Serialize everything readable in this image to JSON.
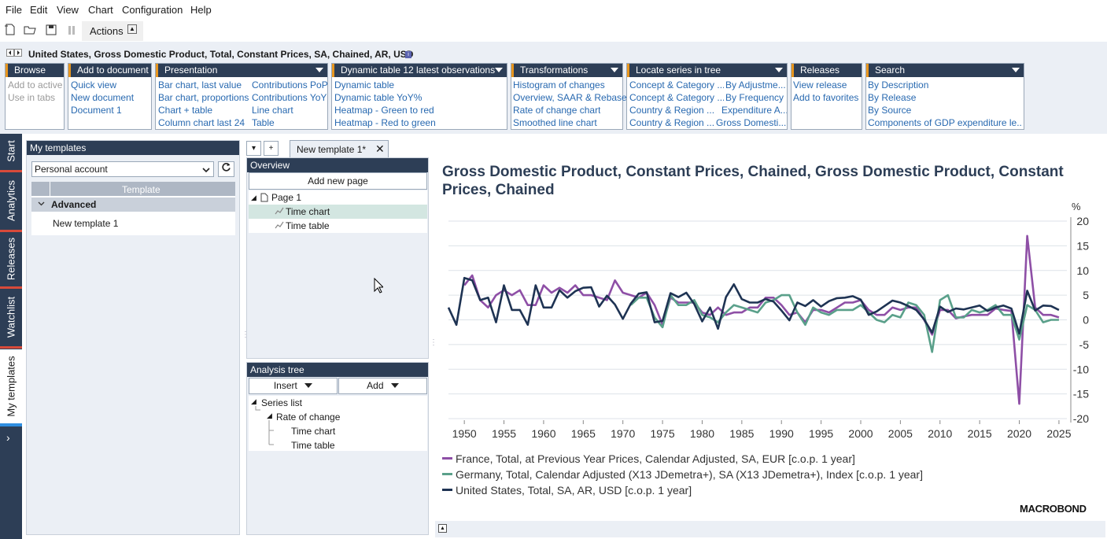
{
  "menu": [
    "File",
    "Edit",
    "View",
    "Chart",
    "Configuration",
    "Help"
  ],
  "toolbar": {
    "actions_label": "Actions",
    "caret": "▲"
  },
  "series_title": "United States, Gross Domestic Product, Total, Constant Prices, SA, Chained, AR, USD",
  "groups": {
    "browse": {
      "title": "Browse",
      "items": [
        "Add to active",
        "Use in tabs"
      ]
    },
    "add_to_document": {
      "title": "Add to document",
      "items": [
        "Quick view",
        "New document",
        "Document 1"
      ]
    },
    "presentation": {
      "title": "Presentation",
      "col1": [
        "Bar chart, last value",
        "Bar chart, proportions",
        "Chart + table",
        "Column chart last 24"
      ],
      "col2": [
        "Contributions PoP",
        "Contributions YoY",
        "Line chart",
        "Table"
      ]
    },
    "dynamic_table": {
      "title": "Dynamic table 12 latest observations",
      "items": [
        "Dynamic table",
        "Dynamic table YoY%",
        "Heatmap - Green to red",
        "Heatmap - Red to green"
      ]
    },
    "transformations": {
      "title": "Transformations",
      "items": [
        "Histogram of changes",
        "Overview, SAAR & Rebase",
        "Rate of change chart",
        "Smoothed line chart"
      ]
    },
    "locate": {
      "title": "Locate series in tree",
      "col1": [
        "Concept & Category ...",
        "Concept & Category ...",
        "Country & Region ...",
        "Country & Region ..."
      ],
      "col2": [
        "By Adjustme...",
        "By Frequency",
        "Expenditure A...",
        "Gross Domesti..."
      ]
    },
    "releases": {
      "title": "Releases",
      "items": [
        "View release",
        "Add to favorites"
      ]
    },
    "search": {
      "title": "Search",
      "items": [
        "By Description",
        "By Release",
        "By Source",
        "Components of GDP expenditure le..."
      ]
    }
  },
  "sidebar": {
    "tabs": [
      "Start",
      "Analytics",
      "Releases",
      "Watchlist",
      "My templates"
    ],
    "more": "›"
  },
  "templates_panel": {
    "title": "My templates",
    "account": "Personal account",
    "column_header": "Template",
    "group": "Advanced",
    "item": "New template 1"
  },
  "mid_tabs": {
    "dropdown": "▾",
    "add": "+",
    "tab_label": "New template 1*",
    "close": "✕"
  },
  "overview": {
    "title": "Overview",
    "add_page": "Add new page",
    "page": "Page 1",
    "items": [
      "Time chart",
      "Time table"
    ]
  },
  "analysis_tree": {
    "title": "Analysis tree",
    "insert": "Insert",
    "add": "Add",
    "rows": [
      "Series list",
      "Rate of change",
      "Time chart",
      "Time table"
    ]
  },
  "chart": {
    "title": "Gross Domestic Product, Constant Prices, Chained, Gross Domestic Product, Constant Prices, Chained",
    "logo": "MACROBOND",
    "colors": {
      "france": "#8e4fa6",
      "germany": "#5aa08a",
      "us": "#1e3353"
    }
  },
  "chart_data": {
    "type": "line",
    "ylabel": "%",
    "ylim": [
      -20,
      20
    ],
    "yticks": [
      20,
      15,
      10,
      5,
      0,
      -5,
      -10,
      -15,
      -20
    ],
    "xlim": [
      1948,
      2026
    ],
    "xticks": [
      1950,
      1955,
      1960,
      1965,
      1970,
      1975,
      1980,
      1985,
      1990,
      1995,
      2000,
      2005,
      2010,
      2015,
      2020,
      2025
    ],
    "legend_position": "bottom",
    "series": [
      {
        "name": "France, Total, at Previous Year Prices, Calendar Adjusted, SA, EUR [c.o.p. 1 year]",
        "color": "#8e4fa6",
        "points": [
          [
            1950,
            7
          ],
          [
            1951,
            9
          ],
          [
            1952,
            4
          ],
          [
            1953,
            2.5
          ],
          [
            1954,
            5
          ],
          [
            1955,
            6
          ],
          [
            1956,
            5
          ],
          [
            1957,
            6
          ],
          [
            1958,
            3
          ],
          [
            1959,
            3
          ],
          [
            1960,
            7
          ],
          [
            1961,
            5.5
          ],
          [
            1962,
            6.5
          ],
          [
            1963,
            5.5
          ],
          [
            1964,
            7
          ],
          [
            1965,
            5
          ],
          [
            1966,
            5
          ],
          [
            1967,
            4.5
          ],
          [
            1968,
            4
          ],
          [
            1969,
            8
          ],
          [
            1970,
            5.5
          ],
          [
            1971,
            5
          ],
          [
            1972,
            4.5
          ],
          [
            1973,
            5.5
          ],
          [
            1974,
            3
          ],
          [
            1975,
            -1
          ],
          [
            1976,
            4.5
          ],
          [
            1977,
            3.5
          ],
          [
            1978,
            3.5
          ],
          [
            1979,
            3.5
          ],
          [
            1980,
            1.5
          ],
          [
            1981,
            1
          ],
          [
            1982,
            2.5
          ],
          [
            1983,
            1
          ],
          [
            1984,
            1.5
          ],
          [
            1985,
            1.5
          ],
          [
            1986,
            2.5
          ],
          [
            1987,
            2.5
          ],
          [
            1988,
            4.5
          ],
          [
            1989,
            4.5
          ],
          [
            1990,
            3
          ],
          [
            1991,
            1
          ],
          [
            1992,
            1.5
          ],
          [
            1993,
            -0.5
          ],
          [
            1994,
            2
          ],
          [
            1995,
            2
          ],
          [
            1996,
            1.5
          ],
          [
            1997,
            2.5
          ],
          [
            1998,
            3.5
          ],
          [
            1999,
            3.5
          ],
          [
            2000,
            4
          ],
          [
            2001,
            2
          ],
          [
            2002,
            1
          ],
          [
            2003,
            1
          ],
          [
            2004,
            2.5
          ],
          [
            2005,
            2
          ],
          [
            2006,
            2.5
          ],
          [
            2007,
            2.5
          ],
          [
            2008,
            0
          ],
          [
            2009,
            -3
          ],
          [
            2010,
            2
          ],
          [
            2011,
            2
          ],
          [
            2012,
            0.3
          ],
          [
            2013,
            0.7
          ],
          [
            2014,
            1
          ],
          [
            2015,
            1
          ],
          [
            2016,
            1
          ],
          [
            2017,
            2.3
          ],
          [
            2018,
            2
          ],
          [
            2019,
            1.8
          ],
          [
            2020,
            -17
          ],
          [
            2021,
            17
          ],
          [
            2022,
            2.5
          ],
          [
            2023,
            1
          ],
          [
            2024,
            1
          ],
          [
            2025,
            0.5
          ]
        ]
      },
      {
        "name": "Germany, Total, Calendar Adjusted (X13 JDemetra+), SA (X13 JDemetra+), Index [c.o.p. 1 year]",
        "color": "#5aa08a",
        "points": [
          [
            1971,
            3
          ],
          [
            1972,
            4.5
          ],
          [
            1973,
            4.5
          ],
          [
            1974,
            0.5
          ],
          [
            1975,
            -1.5
          ],
          [
            1976,
            5
          ],
          [
            1977,
            3
          ],
          [
            1978,
            3
          ],
          [
            1979,
            4
          ],
          [
            1980,
            1
          ],
          [
            1981,
            0.5
          ],
          [
            1982,
            -0.5
          ],
          [
            1983,
            1.5
          ],
          [
            1984,
            3
          ],
          [
            1985,
            2.5
          ],
          [
            1986,
            2
          ],
          [
            1987,
            1.5
          ],
          [
            1988,
            3.5
          ],
          [
            1989,
            4
          ],
          [
            1990,
            5
          ],
          [
            1991,
            5
          ],
          [
            1992,
            1.5
          ],
          [
            1993,
            -1
          ],
          [
            1994,
            2.5
          ],
          [
            1995,
            1.5
          ],
          [
            1996,
            1
          ],
          [
            1997,
            2
          ],
          [
            1998,
            2
          ],
          [
            1999,
            2
          ],
          [
            2000,
            3
          ],
          [
            2001,
            1.5
          ],
          [
            2002,
            0
          ],
          [
            2003,
            -0.5
          ],
          [
            2004,
            1
          ],
          [
            2005,
            0.5
          ],
          [
            2006,
            3.5
          ],
          [
            2007,
            3
          ],
          [
            2008,
            1
          ],
          [
            2009,
            -6.5
          ],
          [
            2010,
            4
          ],
          [
            2011,
            5
          ],
          [
            2012,
            0.5
          ],
          [
            2013,
            0.5
          ],
          [
            2014,
            2
          ],
          [
            2015,
            1.5
          ],
          [
            2016,
            2
          ],
          [
            2017,
            3
          ],
          [
            2018,
            1
          ],
          [
            2019,
            1
          ],
          [
            2020,
            -4
          ],
          [
            2021,
            3
          ],
          [
            2022,
            2
          ],
          [
            2023,
            -0.5
          ],
          [
            2024,
            0
          ],
          [
            2025,
            0
          ]
        ]
      },
      {
        "name": "United States, Total, SA, AR, USD [c.o.p. 1 year]",
        "color": "#1e3353",
        "points": [
          [
            1948,
            2.5
          ],
          [
            1949,
            -1
          ],
          [
            1950,
            8.5
          ],
          [
            1951,
            8
          ],
          [
            1952,
            4
          ],
          [
            1953,
            4.5
          ],
          [
            1954,
            -0.5
          ],
          [
            1955,
            7
          ],
          [
            1956,
            2
          ],
          [
            1957,
            2
          ],
          [
            1958,
            -1
          ],
          [
            1959,
            7
          ],
          [
            1960,
            2.5
          ],
          [
            1961,
            2.5
          ],
          [
            1962,
            6
          ],
          [
            1963,
            4.5
          ],
          [
            1964,
            5.8
          ],
          [
            1965,
            6.5
          ],
          [
            1966,
            6.6
          ],
          [
            1967,
            2.7
          ],
          [
            1968,
            4.9
          ],
          [
            1969,
            3.1
          ],
          [
            1970,
            0.2
          ],
          [
            1971,
            3.3
          ],
          [
            1972,
            5.3
          ],
          [
            1973,
            5.6
          ],
          [
            1974,
            -0.5
          ],
          [
            1975,
            -0.2
          ],
          [
            1976,
            5.4
          ],
          [
            1977,
            4.6
          ],
          [
            1978,
            5.5
          ],
          [
            1979,
            3.2
          ],
          [
            1980,
            -0.3
          ],
          [
            1981,
            2.5
          ],
          [
            1982,
            -1.8
          ],
          [
            1983,
            4.6
          ],
          [
            1984,
            7.2
          ],
          [
            1985,
            4.2
          ],
          [
            1986,
            3.5
          ],
          [
            1987,
            3.5
          ],
          [
            1988,
            4.2
          ],
          [
            1989,
            3.7
          ],
          [
            1990,
            1.9
          ],
          [
            1991,
            -0.1
          ],
          [
            1992,
            3.5
          ],
          [
            1993,
            2.8
          ],
          [
            1994,
            4
          ],
          [
            1995,
            2.7
          ],
          [
            1996,
            3.8
          ],
          [
            1997,
            4.4
          ],
          [
            1998,
            4.5
          ],
          [
            1999,
            4.8
          ],
          [
            2000,
            4.1
          ],
          [
            2001,
            1
          ],
          [
            2002,
            1.7
          ],
          [
            2003,
            2.8
          ],
          [
            2004,
            3.9
          ],
          [
            2005,
            3.5
          ],
          [
            2006,
            2.8
          ],
          [
            2007,
            2
          ],
          [
            2008,
            0.1
          ],
          [
            2009,
            -2.6
          ],
          [
            2010,
            2.7
          ],
          [
            2011,
            1.6
          ],
          [
            2012,
            2.3
          ],
          [
            2013,
            2.1
          ],
          [
            2014,
            2.5
          ],
          [
            2015,
            2.9
          ],
          [
            2016,
            1.8
          ],
          [
            2017,
            2.5
          ],
          [
            2018,
            2.9
          ],
          [
            2019,
            2.3
          ],
          [
            2020,
            -2.8
          ],
          [
            2021,
            5.9
          ],
          [
            2022,
            1.9
          ],
          [
            2023,
            2.9
          ],
          [
            2024,
            2.8
          ],
          [
            2025,
            2
          ]
        ]
      }
    ]
  }
}
